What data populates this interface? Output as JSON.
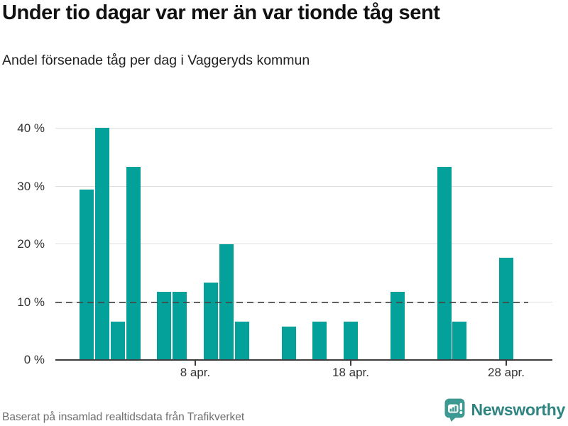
{
  "header": {
    "title": "Under tio dagar var mer än var tionde tåg sent",
    "subtitle": "Andel försenade tåg per dag i Vaggeryds kommun"
  },
  "footer": {
    "source": "Baserat på insamlad realtidsdata från Trafikverket",
    "brand": "Newsworthy"
  },
  "colors": {
    "bar": "#04a09a",
    "grid": "#dedede",
    "axis": "#3d3d3d",
    "reference_dash": "#474747",
    "title_text": "#111111",
    "subtitle_text": "#222222",
    "tick_text": "#333333",
    "source_text": "#6e6e6e",
    "logo_icon": "#3c9a93",
    "wordmark_text": "#2d8480"
  },
  "chart_data": {
    "type": "bar",
    "title": "Under tio dagar var mer än var tionde tåg sent",
    "subtitle": "Andel försenade tåg per dag i Vaggeryds kommun",
    "unit": "%",
    "categories": [
      "1 apr.",
      "2 apr.",
      "3 apr.",
      "4 apr.",
      "6 apr.",
      "7 apr.",
      "9 apr.",
      "10 apr.",
      "11 apr.",
      "14 apr.",
      "16 apr.",
      "18 apr.",
      "21 apr.",
      "24 apr.",
      "25 apr.",
      "28 apr."
    ],
    "days": [
      1,
      2,
      3,
      4,
      6,
      7,
      9,
      10,
      11,
      14,
      16,
      18,
      21,
      24,
      25,
      28
    ],
    "values": [
      29.3,
      40.0,
      6.5,
      33.3,
      11.6,
      11.6,
      13.3,
      19.9,
      6.5,
      5.7,
      6.5,
      6.5,
      11.6,
      33.3,
      6.5,
      17.5
    ],
    "ylim": [
      0,
      42
    ],
    "yticks": [
      {
        "value": 0,
        "label": "0 %"
      },
      {
        "value": 10,
        "label": "10 %"
      },
      {
        "value": 20,
        "label": "20 %"
      },
      {
        "value": 30,
        "label": "30 %"
      },
      {
        "value": 40,
        "label": "40 %"
      }
    ],
    "xticks": [
      {
        "day": 8,
        "label": "8 apr."
      },
      {
        "day": 18,
        "label": "18 apr."
      },
      {
        "day": 28,
        "label": "28 apr."
      }
    ],
    "reference_line": 10,
    "grid": true,
    "legend": false
  }
}
